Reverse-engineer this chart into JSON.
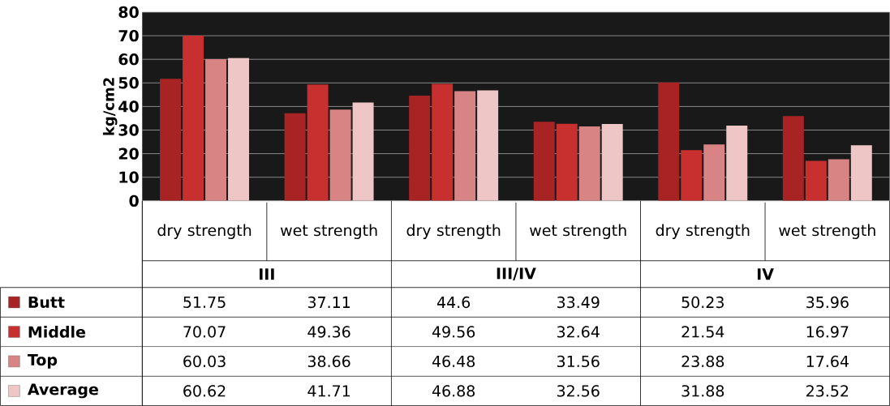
{
  "chart_data": {
    "type": "bar",
    "ylabel": "kg/cm2",
    "categories": [
      "dry strength",
      "wet strength",
      "dry strength",
      "wet strength",
      "dry strength",
      "wet strength"
    ],
    "annotations": [
      "III",
      "III/IV",
      "IV"
    ],
    "series": [
      {
        "name": "Butt",
        "color": "#a82424",
        "values": [
          51.75,
          37.11,
          44.6,
          33.49,
          50.23,
          35.96
        ]
      },
      {
        "name": "Middle",
        "color": "#c83030",
        "values": [
          70.07,
          49.36,
          49.56,
          32.64,
          21.54,
          16.97
        ]
      },
      {
        "name": "Top",
        "color": "#d98484",
        "values": [
          60.03,
          38.66,
          46.48,
          31.56,
          23.88,
          17.64
        ]
      },
      {
        "name": "Average",
        "color": "#efc6c6",
        "values": [
          60.62,
          41.71,
          46.88,
          32.56,
          31.88,
          23.52
        ]
      }
    ],
    "ylim": [
      0,
      80
    ],
    "yticks": [
      0,
      10,
      20,
      30,
      40,
      50,
      60,
      70,
      80
    ],
    "grid": "y",
    "data_labels": true,
    "legend": "bottom left"
  }
}
